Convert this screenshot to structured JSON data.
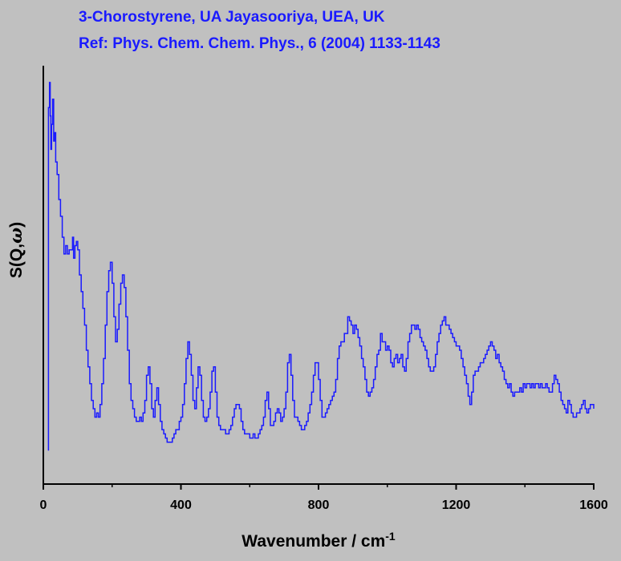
{
  "chart_data": {
    "type": "line",
    "title_lines": [
      "3-Chorostyrene, UA Jayasooriya, UEA, UK",
      "Ref: Phys. Chem. Chem. Phys., 6 (2004) 1133-1143"
    ],
    "xlabel": {
      "text": "Wavenumber / cm",
      "superscript": "-1"
    },
    "ylabel": {
      "prefix": "S(Q,",
      "symbol": "ω",
      "suffix": ")"
    },
    "xlim": [
      0,
      1600
    ],
    "ylim": [
      0,
      100
    ],
    "x_ticks": [
      0,
      400,
      800,
      1200,
      1600
    ],
    "x_minor_ticks": [
      200,
      600,
      1000,
      1400
    ],
    "y_tick_labels": false,
    "grid": false,
    "legend": "none",
    "series": [
      {
        "color": "#1a1aff",
        "points": [
          [
            15,
            8
          ],
          [
            15,
            90
          ],
          [
            18,
            96
          ],
          [
            20,
            88
          ],
          [
            22,
            80
          ],
          [
            24,
            86
          ],
          [
            27,
            92
          ],
          [
            30,
            82
          ],
          [
            33,
            84
          ],
          [
            36,
            77
          ],
          [
            40,
            74
          ],
          [
            45,
            68
          ],
          [
            50,
            64
          ],
          [
            55,
            59
          ],
          [
            60,
            55
          ],
          [
            65,
            57
          ],
          [
            70,
            55
          ],
          [
            75,
            56
          ],
          [
            80,
            56
          ],
          [
            85,
            59
          ],
          [
            88,
            54
          ],
          [
            92,
            57
          ],
          [
            96,
            58
          ],
          [
            100,
            56
          ],
          [
            105,
            50
          ],
          [
            110,
            46
          ],
          [
            115,
            42
          ],
          [
            120,
            38
          ],
          [
            125,
            32
          ],
          [
            130,
            28
          ],
          [
            135,
            24
          ],
          [
            140,
            20
          ],
          [
            145,
            18
          ],
          [
            150,
            16
          ],
          [
            155,
            17
          ],
          [
            160,
            16
          ],
          [
            165,
            19
          ],
          [
            170,
            24
          ],
          [
            175,
            30
          ],
          [
            180,
            38
          ],
          [
            185,
            46
          ],
          [
            190,
            51
          ],
          [
            195,
            53
          ],
          [
            200,
            48
          ],
          [
            205,
            40
          ],
          [
            210,
            34
          ],
          [
            215,
            37
          ],
          [
            220,
            43
          ],
          [
            225,
            48
          ],
          [
            230,
            50
          ],
          [
            235,
            47
          ],
          [
            240,
            40
          ],
          [
            245,
            32
          ],
          [
            250,
            24
          ],
          [
            255,
            20
          ],
          [
            260,
            18
          ],
          [
            265,
            16
          ],
          [
            270,
            15
          ],
          [
            275,
            15
          ],
          [
            280,
            16
          ],
          [
            285,
            15
          ],
          [
            290,
            17
          ],
          [
            295,
            20
          ],
          [
            300,
            26
          ],
          [
            305,
            28
          ],
          [
            310,
            24
          ],
          [
            315,
            18
          ],
          [
            320,
            16
          ],
          [
            325,
            20
          ],
          [
            330,
            23
          ],
          [
            335,
            19
          ],
          [
            340,
            15
          ],
          [
            345,
            13
          ],
          [
            350,
            12
          ],
          [
            355,
            11
          ],
          [
            360,
            10
          ],
          [
            365,
            10
          ],
          [
            370,
            10
          ],
          [
            375,
            11
          ],
          [
            380,
            12
          ],
          [
            385,
            13
          ],
          [
            390,
            13
          ],
          [
            395,
            15
          ],
          [
            400,
            16
          ],
          [
            405,
            19
          ],
          [
            410,
            24
          ],
          [
            415,
            30
          ],
          [
            420,
            34
          ],
          [
            425,
            31
          ],
          [
            430,
            26
          ],
          [
            435,
            20
          ],
          [
            440,
            18
          ],
          [
            445,
            23
          ],
          [
            450,
            28
          ],
          [
            455,
            26
          ],
          [
            460,
            20
          ],
          [
            465,
            16
          ],
          [
            470,
            15
          ],
          [
            475,
            16
          ],
          [
            480,
            18
          ],
          [
            485,
            22
          ],
          [
            490,
            27
          ],
          [
            495,
            28
          ],
          [
            500,
            22
          ],
          [
            505,
            16
          ],
          [
            510,
            14
          ],
          [
            515,
            13
          ],
          [
            520,
            13
          ],
          [
            525,
            13
          ],
          [
            530,
            12
          ],
          [
            535,
            12
          ],
          [
            540,
            13
          ],
          [
            545,
            14
          ],
          [
            550,
            16
          ],
          [
            555,
            18
          ],
          [
            560,
            19
          ],
          [
            565,
            19
          ],
          [
            570,
            18
          ],
          [
            575,
            15
          ],
          [
            580,
            13
          ],
          [
            585,
            12
          ],
          [
            590,
            12
          ],
          [
            595,
            12
          ],
          [
            600,
            11
          ],
          [
            605,
            11
          ],
          [
            610,
            12
          ],
          [
            615,
            11
          ],
          [
            620,
            11
          ],
          [
            625,
            12
          ],
          [
            630,
            13
          ],
          [
            635,
            14
          ],
          [
            640,
            16
          ],
          [
            645,
            20
          ],
          [
            650,
            22
          ],
          [
            655,
            18
          ],
          [
            660,
            14
          ],
          [
            665,
            14
          ],
          [
            670,
            15
          ],
          [
            675,
            17
          ],
          [
            680,
            18
          ],
          [
            685,
            17
          ],
          [
            690,
            15
          ],
          [
            695,
            16
          ],
          [
            700,
            18
          ],
          [
            705,
            22
          ],
          [
            710,
            29
          ],
          [
            715,
            31
          ],
          [
            720,
            26
          ],
          [
            725,
            20
          ],
          [
            730,
            16
          ],
          [
            735,
            16
          ],
          [
            740,
            15
          ],
          [
            745,
            14
          ],
          [
            750,
            13
          ],
          [
            755,
            13
          ],
          [
            760,
            14
          ],
          [
            765,
            15
          ],
          [
            770,
            17
          ],
          [
            775,
            19
          ],
          [
            780,
            22
          ],
          [
            785,
            26
          ],
          [
            790,
            29
          ],
          [
            795,
            29
          ],
          [
            800,
            25
          ],
          [
            805,
            20
          ],
          [
            810,
            16
          ],
          [
            815,
            16
          ],
          [
            820,
            17
          ],
          [
            825,
            18
          ],
          [
            830,
            19
          ],
          [
            835,
            20
          ],
          [
            840,
            21
          ],
          [
            845,
            22
          ],
          [
            850,
            25
          ],
          [
            855,
            30
          ],
          [
            860,
            33
          ],
          [
            865,
            34
          ],
          [
            870,
            34
          ],
          [
            875,
            36
          ],
          [
            880,
            36
          ],
          [
            885,
            40
          ],
          [
            890,
            39
          ],
          [
            895,
            38
          ],
          [
            900,
            36
          ],
          [
            905,
            38
          ],
          [
            910,
            37
          ],
          [
            915,
            35
          ],
          [
            920,
            33
          ],
          [
            925,
            30
          ],
          [
            930,
            28
          ],
          [
            935,
            25
          ],
          [
            940,
            22
          ],
          [
            945,
            21
          ],
          [
            950,
            22
          ],
          [
            955,
            23
          ],
          [
            960,
            25
          ],
          [
            965,
            28
          ],
          [
            970,
            31
          ],
          [
            975,
            32
          ],
          [
            980,
            36
          ],
          [
            985,
            34
          ],
          [
            990,
            34
          ],
          [
            995,
            32
          ],
          [
            1000,
            33
          ],
          [
            1005,
            32
          ],
          [
            1010,
            29
          ],
          [
            1015,
            28
          ],
          [
            1020,
            30
          ],
          [
            1025,
            31
          ],
          [
            1030,
            29
          ],
          [
            1035,
            30
          ],
          [
            1040,
            31
          ],
          [
            1045,
            28
          ],
          [
            1050,
            27
          ],
          [
            1055,
            30
          ],
          [
            1060,
            34
          ],
          [
            1065,
            36
          ],
          [
            1070,
            38
          ],
          [
            1075,
            38
          ],
          [
            1080,
            37
          ],
          [
            1085,
            38
          ],
          [
            1090,
            37
          ],
          [
            1095,
            35
          ],
          [
            1100,
            34
          ],
          [
            1105,
            33
          ],
          [
            1110,
            32
          ],
          [
            1115,
            30
          ],
          [
            1120,
            28
          ],
          [
            1125,
            27
          ],
          [
            1130,
            27
          ],
          [
            1135,
            28
          ],
          [
            1140,
            31
          ],
          [
            1145,
            34
          ],
          [
            1150,
            36
          ],
          [
            1155,
            38
          ],
          [
            1160,
            39
          ],
          [
            1165,
            40
          ],
          [
            1170,
            38
          ],
          [
            1175,
            38
          ],
          [
            1180,
            37
          ],
          [
            1185,
            36
          ],
          [
            1190,
            35
          ],
          [
            1195,
            34
          ],
          [
            1200,
            33
          ],
          [
            1205,
            33
          ],
          [
            1210,
            32
          ],
          [
            1215,
            30
          ],
          [
            1220,
            28
          ],
          [
            1225,
            26
          ],
          [
            1230,
            24
          ],
          [
            1235,
            21
          ],
          [
            1240,
            19
          ],
          [
            1245,
            22
          ],
          [
            1250,
            26
          ],
          [
            1255,
            27
          ],
          [
            1260,
            27
          ],
          [
            1265,
            28
          ],
          [
            1270,
            29
          ],
          [
            1275,
            29
          ],
          [
            1280,
            30
          ],
          [
            1285,
            31
          ],
          [
            1290,
            32
          ],
          [
            1295,
            33
          ],
          [
            1300,
            34
          ],
          [
            1305,
            33
          ],
          [
            1310,
            32
          ],
          [
            1315,
            30
          ],
          [
            1320,
            31
          ],
          [
            1325,
            29
          ],
          [
            1330,
            28
          ],
          [
            1335,
            27
          ],
          [
            1340,
            25
          ],
          [
            1345,
            24
          ],
          [
            1350,
            23
          ],
          [
            1355,
            24
          ],
          [
            1360,
            22
          ],
          [
            1365,
            21
          ],
          [
            1370,
            22
          ],
          [
            1375,
            22
          ],
          [
            1380,
            22
          ],
          [
            1385,
            23
          ],
          [
            1390,
            22
          ],
          [
            1395,
            24
          ],
          [
            1400,
            23
          ],
          [
            1405,
            24
          ],
          [
            1410,
            24
          ],
          [
            1415,
            23
          ],
          [
            1420,
            24
          ],
          [
            1425,
            23
          ],
          [
            1430,
            24
          ],
          [
            1435,
            24
          ],
          [
            1440,
            23
          ],
          [
            1445,
            24
          ],
          [
            1450,
            23
          ],
          [
            1455,
            23
          ],
          [
            1460,
            24
          ],
          [
            1465,
            23
          ],
          [
            1470,
            22
          ],
          [
            1475,
            22
          ],
          [
            1480,
            24
          ],
          [
            1485,
            26
          ],
          [
            1490,
            25
          ],
          [
            1495,
            24
          ],
          [
            1500,
            22
          ],
          [
            1505,
            20
          ],
          [
            1510,
            19
          ],
          [
            1515,
            18
          ],
          [
            1520,
            17
          ],
          [
            1525,
            20
          ],
          [
            1530,
            19
          ],
          [
            1535,
            17
          ],
          [
            1540,
            16
          ],
          [
            1545,
            16
          ],
          [
            1550,
            17
          ],
          [
            1555,
            17
          ],
          [
            1560,
            18
          ],
          [
            1565,
            19
          ],
          [
            1570,
            20
          ],
          [
            1575,
            18
          ],
          [
            1580,
            17
          ],
          [
            1585,
            18
          ],
          [
            1590,
            19
          ],
          [
            1595,
            19
          ],
          [
            1600,
            18
          ]
        ]
      }
    ]
  },
  "colors": {
    "background": "#c0c0c0",
    "title": "#1a1aff",
    "axis": "#000000",
    "line": "#1a1aff"
  }
}
